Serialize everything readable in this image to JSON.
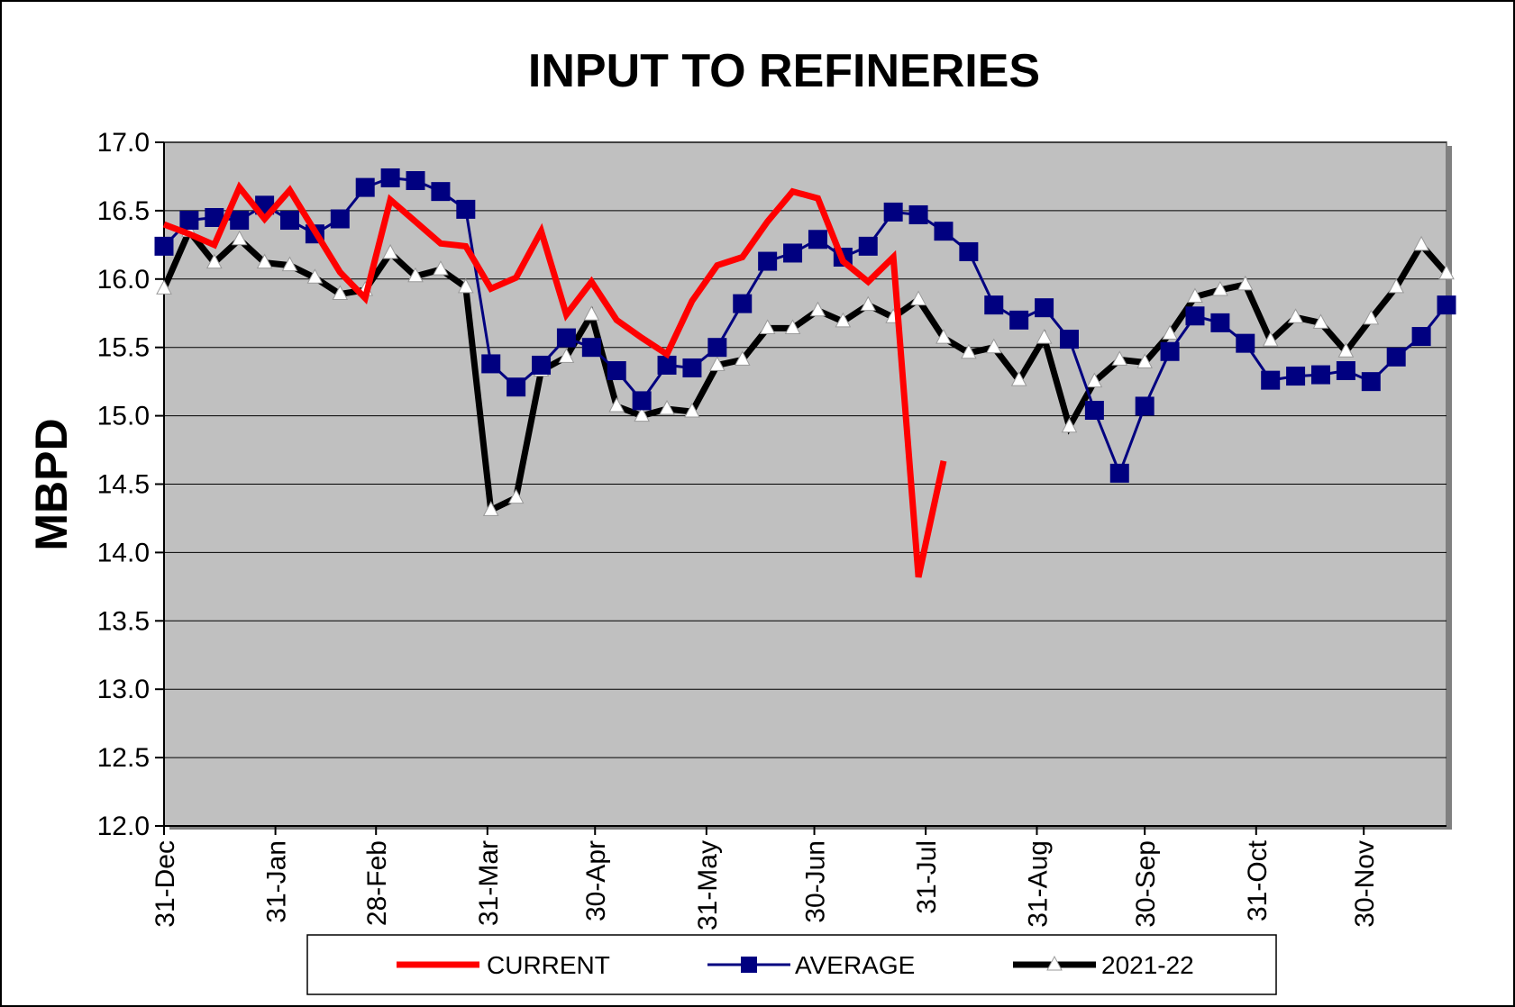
{
  "chart_data": {
    "type": "line",
    "title": "INPUT TO REFINERIES",
    "xlabel": "",
    "ylabel": "MBPD",
    "ylim": [
      12.0,
      17.0
    ],
    "y_ticks": [
      "12.0",
      "12.5",
      "13.0",
      "13.5",
      "14.0",
      "14.5",
      "15.0",
      "15.5",
      "16.0",
      "16.5",
      "17.0"
    ],
    "x_ticks": [
      {
        "label": "31-Dec",
        "week": 0
      },
      {
        "label": "31-Jan",
        "week": 4.43
      },
      {
        "label": "28-Feb",
        "week": 8.43
      },
      {
        "label": "31-Mar",
        "week": 12.86
      },
      {
        "label": "30-Apr",
        "week": 17.14
      },
      {
        "label": "31-May",
        "week": 21.57
      },
      {
        "label": "30-Jun",
        "week": 25.86
      },
      {
        "label": "31-Jul",
        "week": 30.29
      },
      {
        "label": "31-Aug",
        "week": 34.71
      },
      {
        "label": "30-Sep",
        "week": 39.0
      },
      {
        "label": "31-Oct",
        "week": 43.43
      },
      {
        "label": "30-Nov",
        "week": 47.71
      }
    ],
    "grid": true,
    "legend_position": "bottom",
    "plot_background": "#c0c0c0",
    "series": [
      {
        "name": "CURRENT",
        "color": "#ff0000",
        "marker": "none",
        "values": [
          16.4,
          16.33,
          16.25,
          16.67,
          16.44,
          16.65,
          16.35,
          16.05,
          15.86,
          16.58,
          16.42,
          16.26,
          16.24,
          15.93,
          16.01,
          16.35,
          15.74,
          15.98,
          15.7,
          15.57,
          15.45,
          15.84,
          16.1,
          16.16,
          16.42,
          16.64,
          16.59,
          16.13,
          15.98,
          16.16,
          13.82,
          14.67
        ]
      },
      {
        "name": "AVERAGE",
        "color": "#000080",
        "marker": "square",
        "values": [
          16.24,
          16.43,
          16.45,
          16.43,
          16.54,
          16.43,
          16.33,
          16.44,
          16.67,
          16.74,
          16.72,
          16.64,
          16.51,
          15.38,
          15.21,
          15.37,
          15.57,
          15.5,
          15.33,
          15.11,
          15.37,
          15.35,
          15.5,
          15.82,
          16.13,
          16.19,
          16.29,
          16.16,
          16.24,
          16.49,
          16.47,
          16.35,
          16.2,
          15.81,
          15.7,
          15.79,
          15.56,
          15.04,
          14.58,
          15.07,
          15.47,
          15.73,
          15.68,
          15.53,
          15.26,
          15.29,
          15.3,
          15.33,
          15.25,
          15.43,
          15.58,
          15.81
        ]
      },
      {
        "name": "2021-22",
        "color": "#000000",
        "marker": "triangle",
        "values": [
          15.93,
          16.35,
          16.12,
          16.29,
          16.12,
          16.1,
          16.01,
          15.89,
          15.92,
          16.19,
          16.02,
          16.07,
          15.94,
          14.31,
          14.4,
          15.33,
          15.43,
          15.74,
          15.07,
          15.0,
          15.05,
          15.03,
          15.37,
          15.41,
          15.64,
          15.64,
          15.77,
          15.69,
          15.81,
          15.72,
          15.85,
          15.57,
          15.46,
          15.5,
          15.26,
          15.57,
          14.92,
          15.25,
          15.41,
          15.39,
          15.6,
          15.87,
          15.92,
          15.96,
          15.55,
          15.72,
          15.68,
          15.47,
          15.71,
          15.94,
          16.25,
          16.04
        ]
      }
    ]
  }
}
